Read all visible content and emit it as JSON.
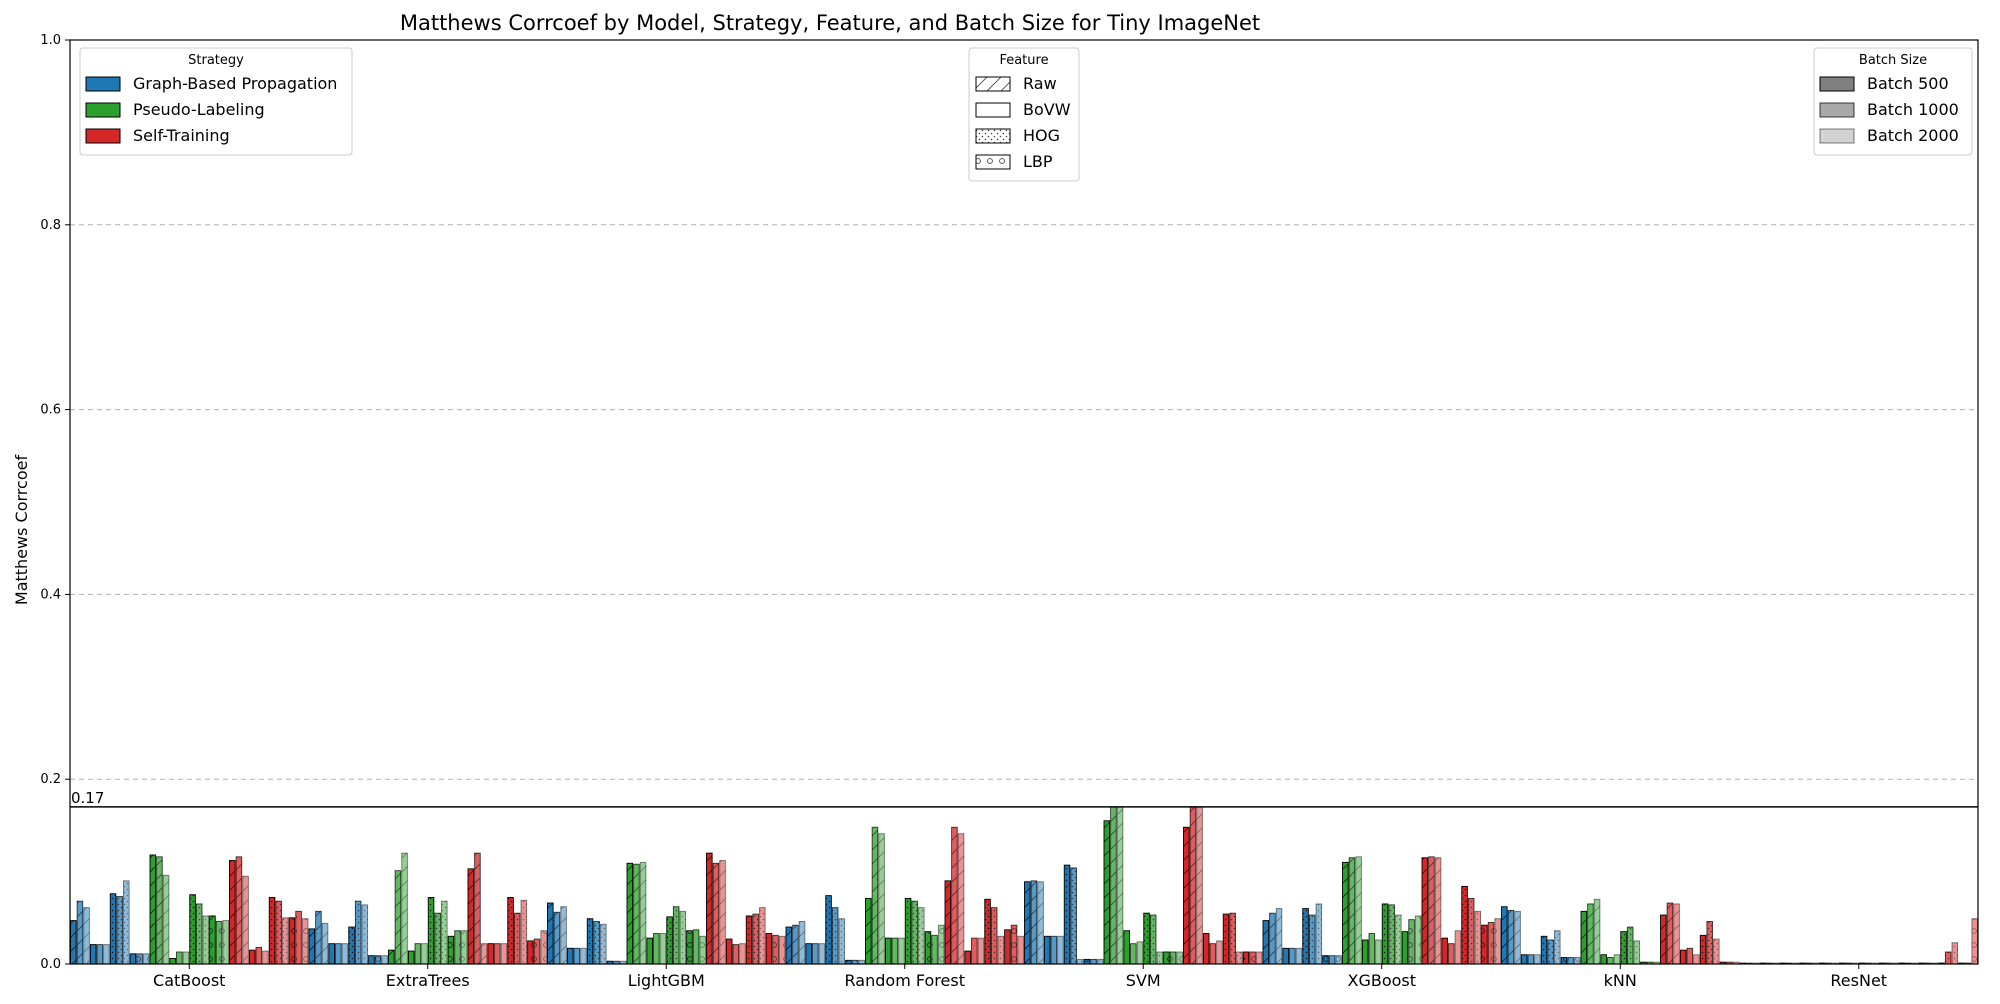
{
  "chart_data": {
    "type": "bar",
    "title": "Matthews Corrcoef by Model, Strategy, Feature, and Batch Size for Tiny ImageNet",
    "ylabel": "Matthews Corrcoef",
    "xlabel": "",
    "ylim": [
      0,
      1.0
    ],
    "yticks": [
      "0.0",
      "0.2",
      "0.4",
      "0.6",
      "0.8",
      "1.0"
    ],
    "grid": true,
    "reference_line": {
      "value": 0.17,
      "label": "0.17"
    },
    "categories": [
      "CatBoost",
      "ExtraTrees",
      "LightGBM",
      "Random Forest",
      "SVM",
      "XGBoost",
      "kNN",
      "ResNet"
    ],
    "strategies": [
      {
        "name": "Graph-Based Propagation",
        "color": "#1f77b4"
      },
      {
        "name": "Pseudo-Labeling",
        "color": "#2ca02c"
      },
      {
        "name": "Self-Training",
        "color": "#d62728"
      }
    ],
    "features": [
      {
        "name": "Raw",
        "pattern": "hatch-diagonal"
      },
      {
        "name": "BoVW",
        "pattern": "none"
      },
      {
        "name": "HOG",
        "pattern": "dots"
      },
      {
        "name": "LBP",
        "pattern": "circles"
      }
    ],
    "batch_sizes": [
      {
        "name": "Batch 500",
        "swatch": "#808080"
      },
      {
        "name": "Batch 1000",
        "swatch": "#a9a9a9"
      },
      {
        "name": "Batch 2000",
        "swatch": "#d3d3d3"
      }
    ],
    "legends": {
      "strategy_title": "Strategy",
      "feature_title": "Feature",
      "batch_title": "Batch Size",
      "strategy_placement": "top-left",
      "feature_placement": "top-center",
      "batch_placement": "top-right"
    },
    "series_order_note_values": "values[model][strategy][feature][batch]",
    "values": [
      [
        [
          [
            0.047,
            0.068,
            0.061
          ],
          [
            0.021,
            0.021,
            0.021
          ],
          [
            0.076,
            0.073,
            0.09
          ],
          [
            0.011,
            0.011,
            0.011
          ]
        ],
        [
          [
            0.118,
            0.116,
            0.096
          ],
          [
            0.006,
            0.013,
            0.013
          ],
          [
            0.075,
            0.065,
            0.052
          ],
          [
            0.052,
            0.046,
            0.047
          ]
        ],
        [
          [
            0.112,
            0.116,
            0.095
          ],
          [
            0.015,
            0.018,
            0.014
          ],
          [
            0.072,
            0.068,
            0.05
          ],
          [
            0.05,
            0.057,
            0.049
          ]
        ]
      ],
      [
        [
          [
            0.038,
            0.057,
            0.044
          ],
          [
            0.022,
            0.022,
            0.022
          ],
          [
            0.04,
            0.068,
            0.064
          ],
          [
            0.009,
            0.009,
            0.009
          ]
        ],
        [
          [
            0.015,
            0.101,
            0.12
          ],
          [
            0.014,
            0.022,
            0.022
          ],
          [
            0.072,
            0.055,
            0.068
          ],
          [
            0.03,
            0.036,
            0.036
          ]
        ],
        [
          [
            0.103,
            0.12,
            0.022
          ],
          [
            0.022,
            0.022,
            0.022
          ],
          [
            0.072,
            0.055,
            0.069
          ],
          [
            0.025,
            0.027,
            0.036
          ]
        ]
      ],
      [
        [
          [
            0.066,
            0.056,
            0.062
          ],
          [
            0.017,
            0.017,
            0.017
          ],
          [
            0.049,
            0.046,
            0.043
          ],
          [
            0.003,
            0.003,
            0.003
          ]
        ],
        [
          [
            0.109,
            0.108,
            0.11
          ],
          [
            0.028,
            0.033,
            0.033
          ],
          [
            0.051,
            0.062,
            0.057
          ],
          [
            0.036,
            0.037,
            0.03
          ]
        ],
        [
          [
            0.12,
            0.109,
            0.112
          ],
          [
            0.027,
            0.021,
            0.022
          ],
          [
            0.052,
            0.054,
            0.061
          ],
          [
            0.033,
            0.031,
            0.03
          ]
        ]
      ],
      [
        [
          [
            0.04,
            0.042,
            0.046
          ],
          [
            0.022,
            0.022,
            0.022
          ],
          [
            0.074,
            0.061,
            0.049
          ],
          [
            0.004,
            0.004,
            0.004
          ]
        ],
        [
          [
            0.071,
            0.148,
            0.141
          ],
          [
            0.028,
            0.028,
            0.028
          ],
          [
            0.071,
            0.068,
            0.061
          ],
          [
            0.035,
            0.031,
            0.042
          ]
        ],
        [
          [
            0.09,
            0.148,
            0.141
          ],
          [
            0.014,
            0.028,
            0.028
          ],
          [
            0.07,
            0.061,
            0.03
          ],
          [
            0.037,
            0.042,
            0.03
          ]
        ]
      ],
      [
        [
          [
            0.089,
            0.09,
            0.089
          ],
          [
            0.03,
            0.03,
            0.03
          ],
          [
            0.107,
            0.104,
            0.005
          ],
          [
            0.005,
            0.005,
            0.005
          ]
        ],
        [
          [
            0.155,
            0.17,
            0.17
          ],
          [
            0.036,
            0.022,
            0.024
          ],
          [
            0.055,
            0.053,
            0.013
          ],
          [
            0.013,
            0.013,
            0.013
          ]
        ],
        [
          [
            0.148,
            0.17,
            0.17
          ],
          [
            0.033,
            0.022,
            0.025
          ],
          [
            0.054,
            0.055,
            0.013
          ],
          [
            0.013,
            0.013,
            0.013
          ]
        ]
      ],
      [
        [
          [
            0.047,
            0.055,
            0.06
          ],
          [
            0.017,
            0.017,
            0.017
          ],
          [
            0.06,
            0.053,
            0.065
          ],
          [
            0.009,
            0.009,
            0.009
          ]
        ],
        [
          [
            0.11,
            0.115,
            0.116
          ],
          [
            0.026,
            0.033,
            0.026
          ],
          [
            0.065,
            0.064,
            0.053
          ],
          [
            0.035,
            0.048,
            0.052
          ]
        ],
        [
          [
            0.115,
            0.116,
            0.115
          ],
          [
            0.028,
            0.022,
            0.036
          ],
          [
            0.084,
            0.071,
            0.057
          ],
          [
            0.042,
            0.045,
            0.049
          ]
        ]
      ],
      [
        [
          [
            0.062,
            0.058,
            0.057
          ],
          [
            0.01,
            0.01,
            0.01
          ],
          [
            0.03,
            0.026,
            0.036
          ],
          [
            0.007,
            0.007,
            0.007
          ]
        ],
        [
          [
            0.057,
            0.065,
            0.07
          ],
          [
            0.01,
            0.007,
            0.01
          ],
          [
            0.035,
            0.04,
            0.025
          ],
          [
            0.002,
            0.002,
            0.002
          ]
        ],
        [
          [
            0.053,
            0.066,
            0.065
          ],
          [
            0.015,
            0.017,
            0.01
          ],
          [
            0.031,
            0.046,
            0.027
          ],
          [
            0.002,
            0.002,
            0.002
          ]
        ]
      ],
      [
        [
          [
            0.001,
            0.001,
            0.001
          ],
          [
            0.001,
            0.001,
            0.001
          ],
          [
            0.001,
            0.001,
            0.001
          ],
          [
            0.001,
            0.001,
            0.001
          ]
        ],
        [
          [
            0.001,
            0.001,
            0.001
          ],
          [
            0.001,
            0.001,
            0.001
          ],
          [
            0.001,
            0.001,
            0.001
          ],
          [
            0.001,
            0.001,
            0.001
          ]
        ],
        [
          [
            0.001,
            0.001,
            0.001
          ],
          [
            0.001,
            0.001,
            0.001
          ],
          [
            0.001,
            0.013,
            0.023
          ],
          [
            0.001,
            0.001,
            0.049
          ]
        ]
      ]
    ]
  }
}
